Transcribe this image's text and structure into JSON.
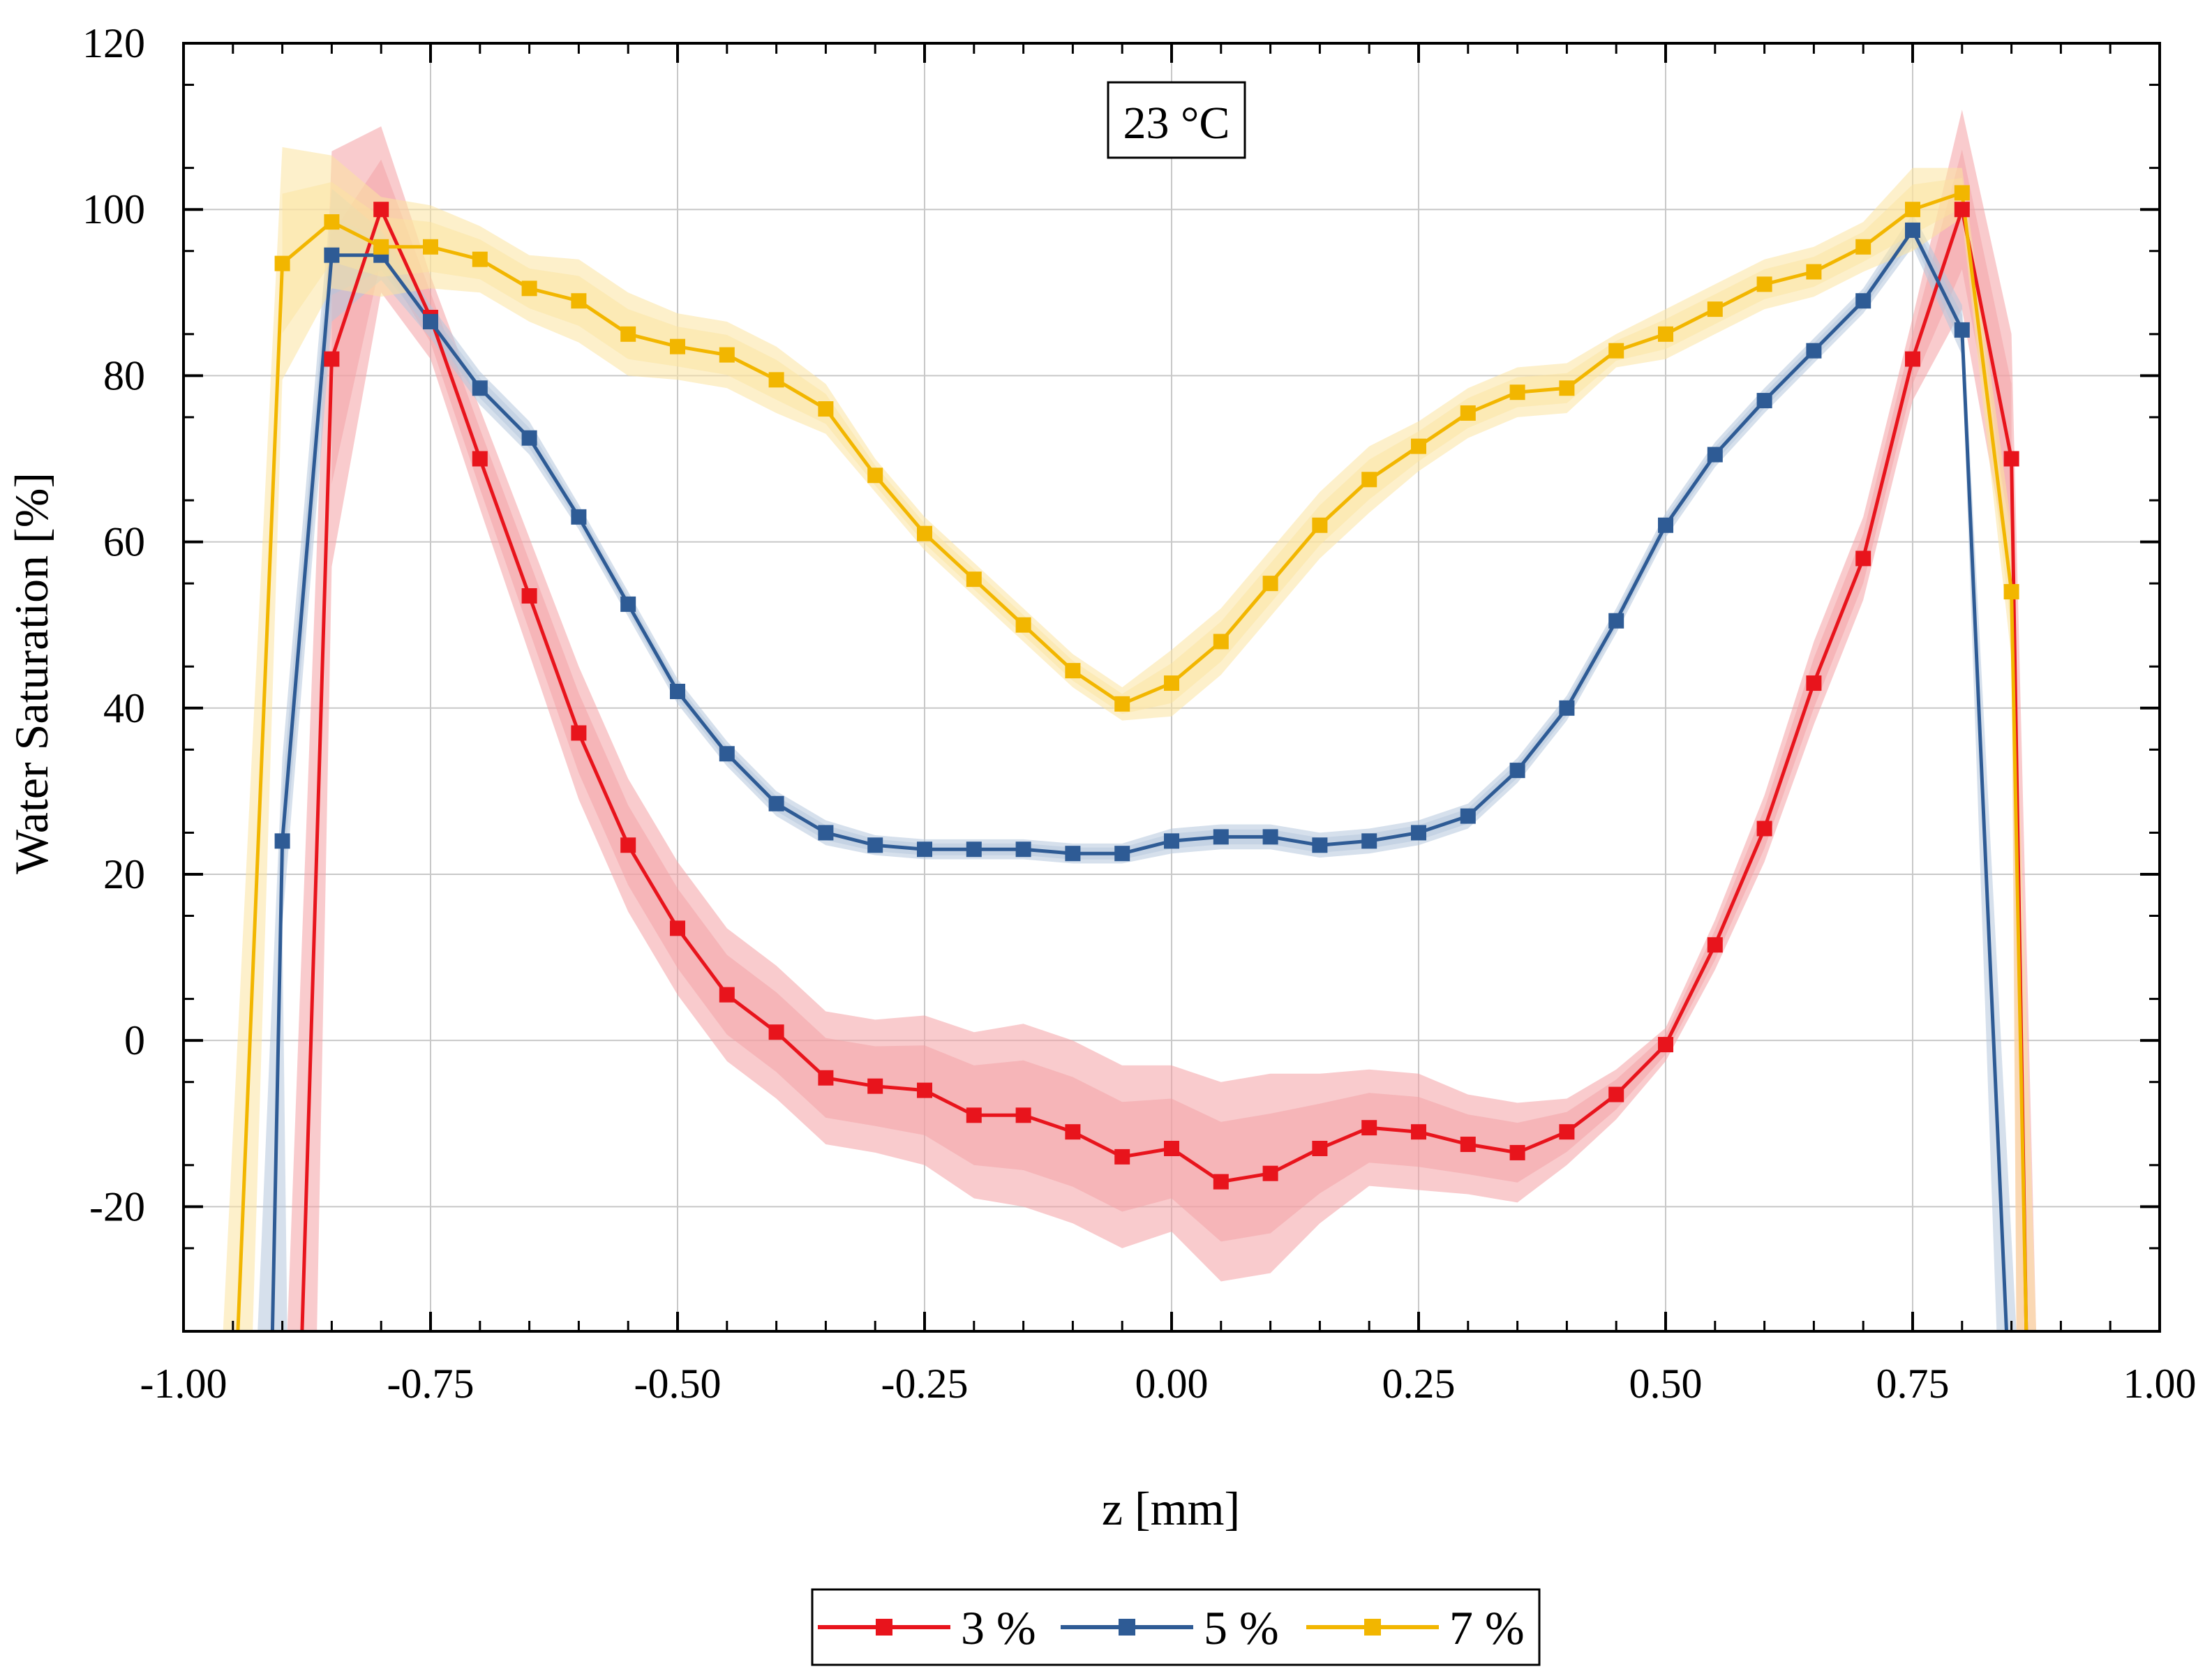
{
  "chart_data": {
    "type": "line",
    "title": "",
    "annotation": "23 °C",
    "xlabel": "z [mm]",
    "ylabel": "Water Saturation [%]",
    "xlim": [
      -1.0,
      1.0
    ],
    "ylim": [
      -35,
      120
    ],
    "grid": true,
    "legend_position": "bottom-center",
    "x_ticks": [
      -1.0,
      -0.75,
      -0.5,
      -0.25,
      0.0,
      0.25,
      0.5,
      0.75,
      1.0
    ],
    "x_tick_labels": [
      "-1.00",
      "-0.75",
      "-0.50",
      "-0.25",
      "0.00",
      "0.25",
      "0.50",
      "0.75",
      "1.00"
    ],
    "y_ticks": [
      -20,
      0,
      20,
      40,
      60,
      80,
      100,
      120
    ],
    "y_tick_labels": [
      "-20",
      "0",
      "20",
      "40",
      "60",
      "80",
      "100",
      "120"
    ],
    "series": [
      {
        "name": "3 %",
        "color": "#e8141c",
        "band_color": "#f4a0a4",
        "x": [
          -0.85,
          -0.8,
          -0.75,
          -0.7,
          -0.65,
          -0.6,
          -0.55,
          -0.5,
          -0.45,
          -0.4,
          -0.35,
          -0.3,
          -0.25,
          -0.2,
          -0.15,
          -0.1,
          -0.05,
          0.0,
          0.05,
          0.1,
          0.15,
          0.2,
          0.25,
          0.3,
          0.35,
          0.4,
          0.45,
          0.5,
          0.55,
          0.6,
          0.65,
          0.7,
          0.75,
          0.8,
          0.85
        ],
        "y": [
          82,
          100,
          87,
          70,
          53.5,
          37,
          23.5,
          13.5,
          5.5,
          1,
          -4.5,
          -5.5,
          -6,
          -9,
          -9,
          -11,
          -14,
          -13,
          -17,
          -16,
          -13,
          -10.5,
          -11,
          -12.5,
          -13.5,
          -11,
          -6.5,
          -0.5,
          11.5,
          25.5,
          43,
          58,
          82,
          100,
          70
        ],
        "band_halfwidth": [
          25,
          10,
          5,
          6,
          7,
          8,
          8,
          8,
          8,
          8,
          8,
          8,
          9,
          10,
          11,
          11,
          11,
          10,
          12,
          12,
          9,
          7,
          7,
          6,
          6,
          4,
          3,
          2,
          3,
          4,
          5,
          5,
          5,
          12,
          15
        ],
        "offscreen_start": [
          -0.88,
          -35
        ],
        "offscreen_end": [
          0.865,
          -35
        ]
      },
      {
        "name": "5 %",
        "color": "#2e5b95",
        "band_color": "#b4c6dc",
        "x": [
          -0.9,
          -0.85,
          -0.8,
          -0.75,
          -0.7,
          -0.65,
          -0.6,
          -0.55,
          -0.5,
          -0.45,
          -0.4,
          -0.35,
          -0.3,
          -0.25,
          -0.2,
          -0.15,
          -0.1,
          -0.05,
          0.0,
          0.05,
          0.1,
          0.15,
          0.2,
          0.25,
          0.3,
          0.35,
          0.4,
          0.45,
          0.5,
          0.55,
          0.6,
          0.65,
          0.7,
          0.75,
          0.8
        ],
        "y": [
          24,
          94.5,
          94.5,
          86.5,
          78.5,
          72.5,
          63,
          52.5,
          42,
          34.5,
          28.5,
          25,
          23.5,
          23,
          23,
          23,
          22.5,
          22.5,
          24,
          24.5,
          24.5,
          23.5,
          24,
          25,
          27,
          32.5,
          40,
          50.5,
          62,
          70.5,
          77,
          83,
          89,
          97.5,
          85.5
        ],
        "band_halfwidth": [
          10,
          8,
          3,
          2,
          2,
          2,
          1.5,
          1.5,
          1.5,
          1.5,
          1.5,
          1.5,
          1.2,
          1.2,
          1.2,
          1.2,
          1.2,
          1.2,
          1.5,
          1.5,
          1.5,
          1.5,
          1.5,
          1.5,
          1.5,
          1.5,
          1.5,
          1.5,
          1.5,
          1.5,
          1.5,
          1.5,
          1.5,
          2,
          3
        ],
        "offscreen_start": [
          -0.91,
          -35
        ],
        "offscreen_end": [
          0.845,
          -35
        ]
      },
      {
        "name": "7 %",
        "color": "#f2b600",
        "band_color": "#fbe3a0",
        "x": [
          -0.9,
          -0.85,
          -0.8,
          -0.75,
          -0.7,
          -0.65,
          -0.6,
          -0.55,
          -0.5,
          -0.45,
          -0.4,
          -0.35,
          -0.3,
          -0.25,
          -0.2,
          -0.15,
          -0.1,
          -0.05,
          0.0,
          0.05,
          0.1,
          0.15,
          0.2,
          0.25,
          0.3,
          0.35,
          0.4,
          0.45,
          0.5,
          0.55,
          0.6,
          0.65,
          0.7,
          0.75,
          0.8,
          0.85
        ],
        "y": [
          93.5,
          98.5,
          95.5,
          95.5,
          94,
          90.5,
          89,
          85,
          83.5,
          82.5,
          79.5,
          76,
          68,
          61,
          55.5,
          50,
          44.5,
          40.5,
          43,
          48,
          55,
          62,
          67.5,
          71.5,
          75.5,
          78,
          78.5,
          83,
          85,
          88,
          91,
          92.5,
          95.5,
          100,
          102,
          54
        ],
        "band_halfwidth": [
          14,
          8,
          6,
          5,
          4,
          4,
          5,
          5,
          4,
          4,
          4,
          3,
          2,
          2,
          2,
          2,
          2,
          2,
          4,
          4,
          4,
          4,
          4,
          3,
          3,
          3,
          3,
          2,
          3,
          3,
          3,
          3,
          3,
          5,
          3,
          8
        ],
        "offscreen_start": [
          -0.945,
          -35
        ],
        "offscreen_end": [
          0.865,
          -35
        ]
      }
    ]
  }
}
